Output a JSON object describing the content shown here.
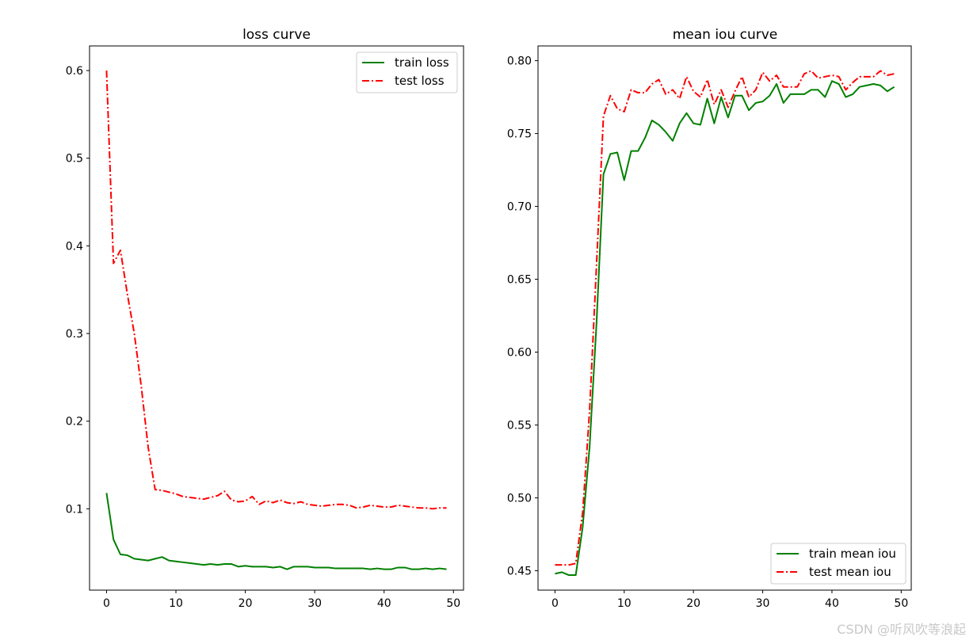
{
  "chart_data": [
    {
      "type": "line",
      "title": "loss curve",
      "xlabel": "",
      "ylabel": "",
      "xlim": [
        -2.45,
        51.45
      ],
      "ylim": [
        0.0072,
        0.6281
      ],
      "xticks": [
        0,
        10,
        20,
        30,
        40,
        50
      ],
      "yticks": [
        0.1,
        0.2,
        0.3,
        0.4,
        0.5,
        0.6
      ],
      "xtick_labels": [
        "0",
        "10",
        "20",
        "30",
        "40",
        "50"
      ],
      "ytick_labels": [
        "0.1",
        "0.2",
        "0.3",
        "0.4",
        "0.5",
        "0.6"
      ],
      "legend_position": "top-right",
      "series": [
        {
          "name": "train loss",
          "color": "#008000",
          "style": "solid",
          "x": [
            0,
            1,
            2,
            3,
            4,
            5,
            6,
            7,
            8,
            9,
            10,
            11,
            12,
            13,
            14,
            15,
            16,
            17,
            18,
            19,
            20,
            21,
            22,
            23,
            24,
            25,
            26,
            27,
            28,
            29,
            30,
            31,
            32,
            33,
            34,
            35,
            36,
            37,
            38,
            39,
            40,
            41,
            42,
            43,
            44,
            45,
            46,
            47,
            48,
            49
          ],
          "values": [
            0.118,
            0.065,
            0.048,
            0.047,
            0.043,
            0.042,
            0.041,
            0.043,
            0.045,
            0.041,
            0.04,
            0.039,
            0.038,
            0.037,
            0.036,
            0.037,
            0.036,
            0.037,
            0.037,
            0.034,
            0.035,
            0.034,
            0.034,
            0.034,
            0.033,
            0.034,
            0.031,
            0.034,
            0.034,
            0.034,
            0.033,
            0.033,
            0.033,
            0.032,
            0.032,
            0.032,
            0.032,
            0.032,
            0.031,
            0.032,
            0.031,
            0.031,
            0.033,
            0.033,
            0.031,
            0.031,
            0.032,
            0.031,
            0.032,
            0.031
          ]
        },
        {
          "name": "test loss",
          "color": "#ff0000",
          "style": "dashdot",
          "x": [
            0,
            1,
            2,
            3,
            4,
            5,
            6,
            7,
            8,
            9,
            10,
            11,
            12,
            13,
            14,
            15,
            16,
            17,
            18,
            19,
            20,
            21,
            22,
            23,
            24,
            25,
            26,
            27,
            28,
            29,
            30,
            31,
            32,
            33,
            34,
            35,
            36,
            37,
            38,
            39,
            40,
            41,
            42,
            43,
            44,
            45,
            46,
            47,
            48,
            49
          ],
          "values": [
            0.6,
            0.38,
            0.395,
            0.345,
            0.3,
            0.24,
            0.17,
            0.122,
            0.121,
            0.119,
            0.117,
            0.114,
            0.113,
            0.112,
            0.111,
            0.113,
            0.115,
            0.12,
            0.11,
            0.108,
            0.109,
            0.114,
            0.105,
            0.109,
            0.107,
            0.11,
            0.107,
            0.106,
            0.108,
            0.105,
            0.104,
            0.103,
            0.104,
            0.105,
            0.105,
            0.104,
            0.101,
            0.102,
            0.104,
            0.103,
            0.102,
            0.102,
            0.104,
            0.103,
            0.102,
            0.101,
            0.101,
            0.1,
            0.101,
            0.101
          ]
        }
      ]
    },
    {
      "type": "line",
      "title": "mean iou curve",
      "xlabel": "",
      "ylabel": "",
      "xlim": [
        -2.45,
        51.45
      ],
      "ylim": [
        0.4367,
        0.8101
      ],
      "xticks": [
        0,
        10,
        20,
        30,
        40,
        50
      ],
      "yticks": [
        0.45,
        0.5,
        0.55,
        0.6,
        0.65,
        0.7,
        0.75,
        0.8
      ],
      "xtick_labels": [
        "0",
        "10",
        "20",
        "30",
        "40",
        "50"
      ],
      "ytick_labels": [
        "0.45",
        "0.50",
        "0.55",
        "0.60",
        "0.65",
        "0.70",
        "0.75",
        "0.80"
      ],
      "legend_position": "bottom-right",
      "series": [
        {
          "name": "train mean iou",
          "color": "#008000",
          "style": "solid",
          "x": [
            0,
            1,
            2,
            3,
            4,
            5,
            6,
            7,
            8,
            9,
            10,
            11,
            12,
            13,
            14,
            15,
            16,
            17,
            18,
            19,
            20,
            21,
            22,
            23,
            24,
            25,
            26,
            27,
            28,
            29,
            30,
            31,
            32,
            33,
            34,
            35,
            36,
            37,
            38,
            39,
            40,
            41,
            42,
            43,
            44,
            45,
            46,
            47,
            48,
            49
          ],
          "values": [
            0.448,
            0.449,
            0.447,
            0.447,
            0.48,
            0.535,
            0.62,
            0.722,
            0.736,
            0.737,
            0.718,
            0.738,
            0.738,
            0.747,
            0.759,
            0.756,
            0.751,
            0.745,
            0.757,
            0.764,
            0.757,
            0.756,
            0.774,
            0.757,
            0.775,
            0.761,
            0.776,
            0.776,
            0.766,
            0.771,
            0.772,
            0.776,
            0.784,
            0.771,
            0.777,
            0.777,
            0.777,
            0.78,
            0.78,
            0.775,
            0.786,
            0.784,
            0.775,
            0.777,
            0.782,
            0.783,
            0.784,
            0.783,
            0.779,
            0.782
          ]
        },
        {
          "name": "test mean iou",
          "color": "#ff0000",
          "style": "dashdot",
          "x": [
            0,
            1,
            2,
            3,
            4,
            5,
            6,
            7,
            8,
            9,
            10,
            11,
            12,
            13,
            14,
            15,
            16,
            17,
            18,
            19,
            20,
            21,
            22,
            23,
            24,
            25,
            26,
            27,
            28,
            29,
            30,
            31,
            32,
            33,
            34,
            35,
            36,
            37,
            38,
            39,
            40,
            41,
            42,
            43,
            44,
            45,
            46,
            47,
            48,
            49
          ],
          "values": [
            0.454,
            0.454,
            0.454,
            0.455,
            0.49,
            0.56,
            0.66,
            0.762,
            0.776,
            0.767,
            0.765,
            0.78,
            0.778,
            0.778,
            0.784,
            0.787,
            0.777,
            0.78,
            0.774,
            0.789,
            0.779,
            0.775,
            0.787,
            0.77,
            0.78,
            0.768,
            0.779,
            0.789,
            0.775,
            0.78,
            0.792,
            0.786,
            0.79,
            0.782,
            0.782,
            0.782,
            0.791,
            0.793,
            0.788,
            0.789,
            0.79,
            0.789,
            0.78,
            0.785,
            0.789,
            0.789,
            0.789,
            0.793,
            0.79,
            0.791
          ]
        }
      ]
    }
  ],
  "watermark": "CSDN @听风吹等浪起"
}
